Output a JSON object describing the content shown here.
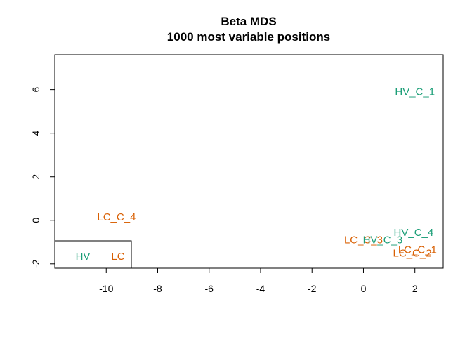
{
  "chart_data": {
    "type": "scatter",
    "title": "Beta MDS",
    "subtitle": "1000 most variable positions",
    "xlabel": "",
    "ylabel": "",
    "xlim": [
      -12,
      3.1
    ],
    "ylim": [
      -2.2,
      7.6
    ],
    "x_ticks": [
      -10,
      -8,
      -6,
      -4,
      -2,
      0,
      2
    ],
    "y_ticks": [
      -2,
      0,
      2,
      4,
      6
    ],
    "grid": false,
    "colors": {
      "HV": "#1b9e77",
      "LC": "#d95f02"
    },
    "points": [
      {
        "label": "HV_C_1",
        "group": "HV",
        "x": 2.0,
        "y": 5.9
      },
      {
        "label": "LC_C_4",
        "group": "LC",
        "x": -9.6,
        "y": 0.15
      },
      {
        "label": "HV_C_4",
        "group": "HV",
        "x": 1.95,
        "y": -0.55
      },
      {
        "label": "LC_C_3",
        "group": "LC",
        "x": 0.0,
        "y": -0.9
      },
      {
        "label": "HV_C_3",
        "group": "HV",
        "x": 0.75,
        "y": -0.9
      },
      {
        "label": "LC_C_1",
        "group": "LC",
        "x": 2.1,
        "y": -1.35
      },
      {
        "label": "LC_C_2",
        "group": "LC",
        "x": 1.9,
        "y": -1.5
      }
    ],
    "legend": {
      "position": "bottom-left",
      "entries": [
        {
          "label": "HV",
          "group": "HV"
        },
        {
          "label": "LC",
          "group": "LC"
        }
      ]
    }
  }
}
